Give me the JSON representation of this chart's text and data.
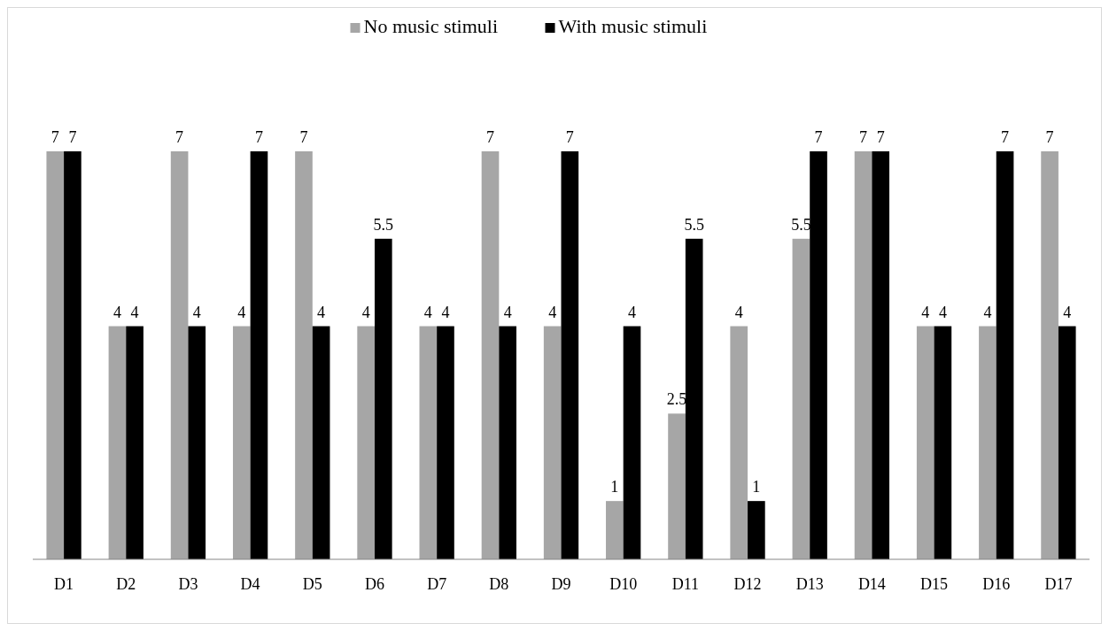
{
  "chart_data": {
    "type": "bar",
    "categories": [
      "D1",
      "D2",
      "D3",
      "D4",
      "D5",
      "D6",
      "D7",
      "D8",
      "D9",
      "D10",
      "D11",
      "D12",
      "D13",
      "D14",
      "D15",
      "D16",
      "D17"
    ],
    "series": [
      {
        "name": "No music stimuli",
        "color": "#a6a6a6",
        "values": [
          7,
          4,
          7,
          4,
          7,
          4,
          4,
          7,
          4,
          1,
          2.5,
          4,
          5.5,
          7,
          4,
          4,
          7
        ]
      },
      {
        "name": "With music stimuli",
        "color": "#000000",
        "values": [
          7,
          4,
          4,
          7,
          4,
          5.5,
          4,
          4,
          7,
          4,
          5.5,
          1,
          7,
          7,
          4,
          7,
          4
        ]
      }
    ],
    "ylim": [
      0,
      7
    ],
    "data_labels": true,
    "legend": "top"
  }
}
